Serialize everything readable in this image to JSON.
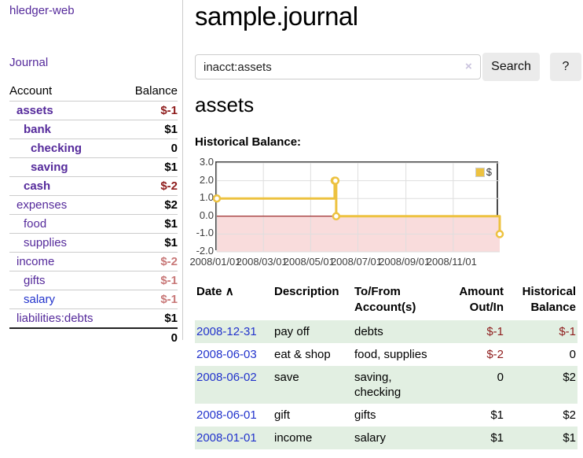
{
  "colors": {
    "link_purple": "#552a9b",
    "link_blue": "#2233cc",
    "negative_strong": "#8e1c1c",
    "negative_soft": "#c87878",
    "row_green": "#e2efe2",
    "series_yellow": "#edc240"
  },
  "app": {
    "brand": "hledger-web"
  },
  "nav": {
    "journal": "Journal"
  },
  "sidebar": {
    "headers": {
      "account": "Account",
      "balance": "Balance"
    },
    "accounts": [
      {
        "name": "assets",
        "balance": "$-1",
        "indent": 1,
        "bold": true,
        "neg": "strong"
      },
      {
        "name": "bank",
        "balance": "$1",
        "indent": 2,
        "bold": true,
        "neg": "none"
      },
      {
        "name": "checking",
        "balance": "0",
        "indent": 3,
        "bold": true,
        "neg": "none"
      },
      {
        "name": "saving",
        "balance": "$1",
        "indent": 3,
        "bold": true,
        "neg": "none"
      },
      {
        "name": "cash",
        "balance": "$-2",
        "indent": 2,
        "bold": true,
        "neg": "strong"
      },
      {
        "name": "expenses",
        "balance": "$2",
        "indent": 1,
        "bold": false,
        "neg": "none"
      },
      {
        "name": "food",
        "balance": "$1",
        "indent": 2,
        "bold": false,
        "neg": "none"
      },
      {
        "name": "supplies",
        "balance": "$1",
        "indent": 2,
        "bold": false,
        "neg": "none"
      },
      {
        "name": "income",
        "balance": "$-2",
        "indent": 1,
        "bold": false,
        "neg": "soft"
      },
      {
        "name": "gifts",
        "balance": "$-1",
        "indent": 2,
        "bold": false,
        "neg": "soft"
      },
      {
        "name": "salary",
        "balance": "$-1",
        "indent": 2,
        "bold": false,
        "neg": "soft",
        "link_color": "blue"
      },
      {
        "name": "liabilities:debts",
        "balance": "$1",
        "indent": 1,
        "bold": false,
        "neg": "none"
      }
    ],
    "total": "0"
  },
  "header": {
    "title": "sample.journal"
  },
  "search": {
    "value": "inacct:assets",
    "clear_icon": "×",
    "search_button": "Search",
    "help_button": "?"
  },
  "account_page": {
    "title": "assets",
    "chart_label": "Historical Balance:"
  },
  "chart_data": {
    "type": "line",
    "step": true,
    "title": "Historical Balance:",
    "series": [
      {
        "name": "$",
        "color": "#edc240",
        "points": [
          {
            "date": "2008-01-01",
            "day": 0,
            "value": 1
          },
          {
            "date": "2008-06-01",
            "day": 152,
            "value": 2
          },
          {
            "date": "2008-06-02",
            "day": 153,
            "value": 2
          },
          {
            "date": "2008-06-03",
            "day": 154,
            "value": 0
          },
          {
            "date": "2008-12-31",
            "day": 365,
            "value": -1
          }
        ]
      }
    ],
    "x_ticks": [
      {
        "label": "2008/01/01",
        "day": 0
      },
      {
        "label": "2008/03/01",
        "day": 60
      },
      {
        "label": "2008/05/01",
        "day": 121
      },
      {
        "label": "2008/07/01",
        "day": 182
      },
      {
        "label": "2008/09/01",
        "day": 244
      },
      {
        "label": "2008/11/01",
        "day": 305
      }
    ],
    "y_ticks": [
      3.0,
      2.0,
      1.0,
      0.0,
      -1.0,
      -2.0
    ],
    "xlim_days": [
      0,
      365
    ],
    "ylim": [
      -2,
      3
    ],
    "grid": true,
    "negative_region_color": "#f9dcdc",
    "zero_line_color": "#8b0000",
    "legend": {
      "label": "$",
      "position": "top-right"
    }
  },
  "register": {
    "sort_icon": "∧",
    "headers": [
      {
        "label": "Date",
        "align": "left"
      },
      {
        "label": "Description",
        "align": "left"
      },
      {
        "label": "To/From Account(s)",
        "align": "left"
      },
      {
        "label": "Amount Out/In",
        "align": "right"
      },
      {
        "label": "Historical Balance",
        "align": "right"
      }
    ],
    "rows": [
      {
        "date": "2008-12-31",
        "description": "pay off",
        "accounts": "debts",
        "amount": "$-1",
        "amount_neg": true,
        "balance": "$-1",
        "balance_neg": true,
        "striped": true
      },
      {
        "date": "2008-06-03",
        "description": "eat & shop",
        "accounts": "food, supplies",
        "amount": "$-2",
        "amount_neg": true,
        "balance": "0",
        "balance_neg": false,
        "striped": false
      },
      {
        "date": "2008-06-02",
        "description": "save",
        "accounts": "saving, checking",
        "amount": "0",
        "amount_neg": false,
        "balance": "$2",
        "balance_neg": false,
        "striped": true
      },
      {
        "date": "2008-06-01",
        "description": "gift",
        "accounts": "gifts",
        "amount": "$1",
        "amount_neg": false,
        "balance": "$2",
        "balance_neg": false,
        "striped": false
      },
      {
        "date": "2008-01-01",
        "description": "income",
        "accounts": "salary",
        "amount": "$1",
        "amount_neg": false,
        "balance": "$1",
        "balance_neg": false,
        "striped": true
      }
    ]
  }
}
